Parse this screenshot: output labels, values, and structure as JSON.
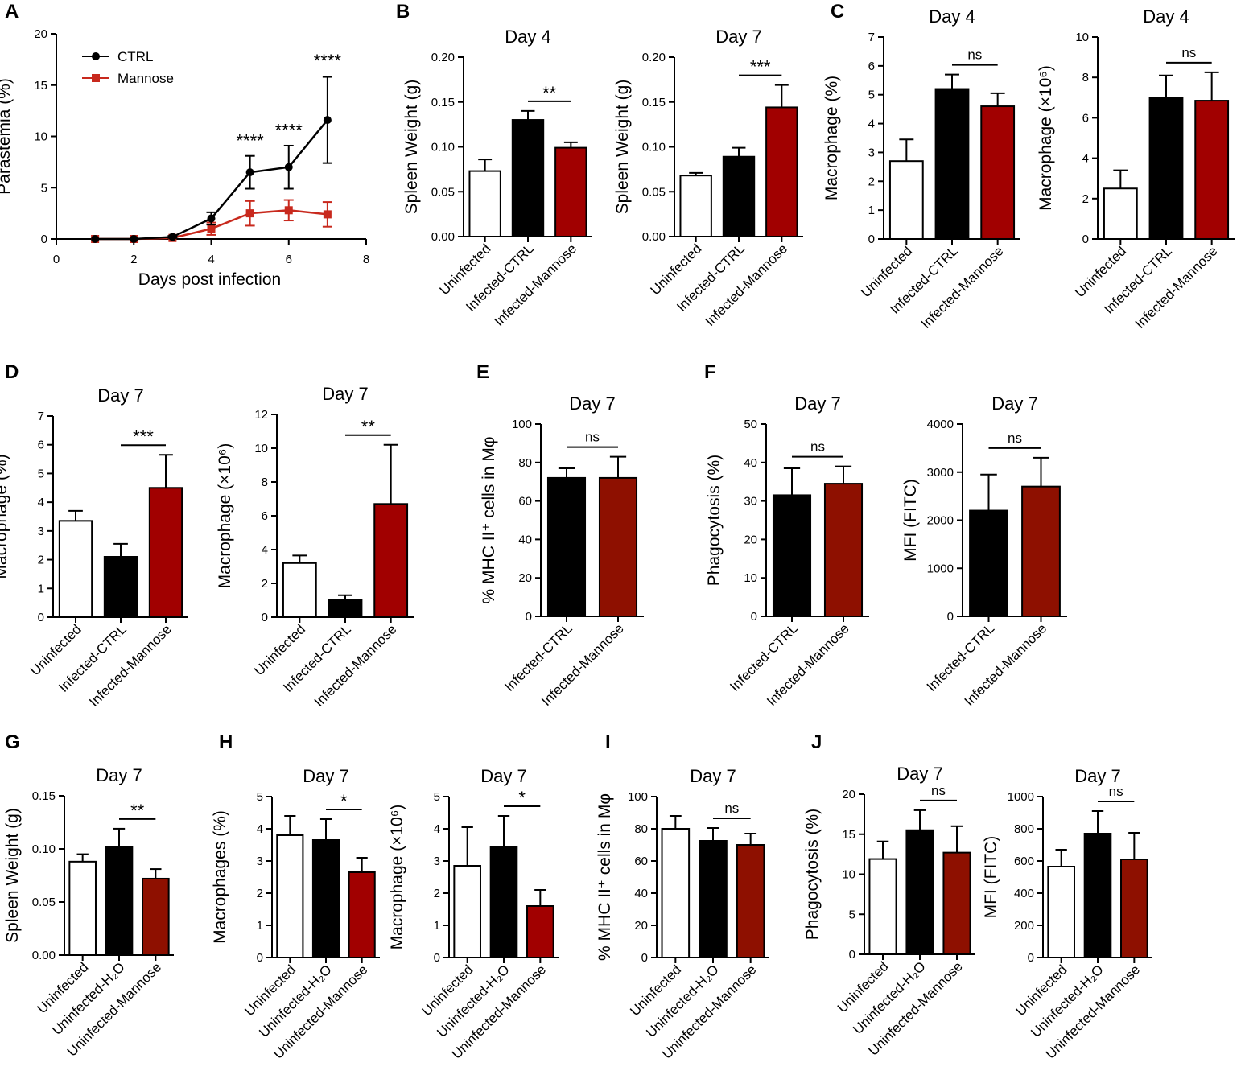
{
  "colors": {
    "uninfected": "#ffffff",
    "ctrl": "#000000",
    "mannose": "#a10000",
    "mannose_alt": "#8e1000",
    "line_mannose": "#c8291d"
  },
  "panels": [
    {
      "letter": "A"
    },
    {
      "letter": "B"
    },
    {
      "letter": "C"
    },
    {
      "letter": "D"
    },
    {
      "letter": "E"
    },
    {
      "letter": "F"
    },
    {
      "letter": "G"
    },
    {
      "letter": "H"
    },
    {
      "letter": "I"
    },
    {
      "letter": "J"
    }
  ],
  "chart_data": [
    {
      "id": "A",
      "type": "line",
      "title": "",
      "xlabel": "Days post infection",
      "ylabel": "Parastemia (%)",
      "xlim": [
        0,
        8
      ],
      "ylim": [
        0,
        20
      ],
      "xticks": [
        "0",
        "2",
        "4",
        "6",
        "8"
      ],
      "yticks": [
        "0",
        "5",
        "10",
        "15",
        "20"
      ],
      "legend": "top-left",
      "series": [
        {
          "name": "CTRL",
          "color": "#000000",
          "marker": "circle",
          "x": [
            1,
            2,
            3,
            4,
            5,
            6,
            7
          ],
          "y": [
            0,
            0,
            0.2,
            2.0,
            6.5,
            7.0,
            11.6
          ],
          "err": [
            0,
            0,
            0.1,
            0.6,
            1.6,
            2.1,
            4.2
          ]
        },
        {
          "name": "Mannose",
          "color": "#c8291d",
          "marker": "square",
          "x": [
            1,
            2,
            3,
            4,
            5,
            6,
            7
          ],
          "y": [
            0,
            0,
            0.1,
            1.0,
            2.5,
            2.8,
            2.4
          ],
          "err": [
            0,
            0,
            0.05,
            0.6,
            1.2,
            1.0,
            1.2
          ]
        }
      ],
      "annotations": [
        {
          "x": 5,
          "y": 9.0,
          "text": "****"
        },
        {
          "x": 6,
          "y": 10.0,
          "text": "****"
        },
        {
          "x": 7,
          "y": 16.8,
          "text": "****"
        }
      ]
    },
    {
      "id": "B1",
      "type": "bar",
      "title": "Day 4",
      "ylabel": "Spleen Weight (g)",
      "ylim": [
        0,
        0.2
      ],
      "yticks": [
        "0.00",
        "0.05",
        "0.10",
        "0.15",
        "0.20"
      ],
      "categories": [
        "Uninfected",
        "Infected-CTRL",
        "Infected-Mannose"
      ],
      "values": [
        0.073,
        0.13,
        0.099
      ],
      "errors": [
        0.013,
        0.01,
        0.006
      ],
      "fills": [
        "#ffffff",
        "#000000",
        "#a10000"
      ],
      "significance": [
        {
          "from": 1,
          "to": 2,
          "label": "**"
        }
      ]
    },
    {
      "id": "B2",
      "type": "bar",
      "title": "Day 7",
      "ylabel": "Spleen Weight (g)",
      "ylim": [
        0,
        0.2
      ],
      "yticks": [
        "0.00",
        "0.05",
        "0.10",
        "0.15",
        "0.20"
      ],
      "categories": [
        "Uninfected",
        "Infected-CTRL",
        "Infected-Mannose"
      ],
      "values": [
        0.068,
        0.089,
        0.144
      ],
      "errors": [
        0.003,
        0.01,
        0.025
      ],
      "fills": [
        "#ffffff",
        "#000000",
        "#a10000"
      ],
      "significance": [
        {
          "from": 1,
          "to": 2,
          "label": "***"
        }
      ]
    },
    {
      "id": "C1",
      "type": "bar",
      "title": "Day 4",
      "ylabel": "Macrophage (%)",
      "ylim": [
        0,
        7
      ],
      "yticks": [
        "0",
        "1",
        "2",
        "3",
        "4",
        "5",
        "6",
        "7"
      ],
      "categories": [
        "Uninfected",
        "Infected-CTRL",
        "Infected-Mannose"
      ],
      "values": [
        2.7,
        5.2,
        4.6
      ],
      "errors": [
        0.75,
        0.5,
        0.45
      ],
      "fills": [
        "#ffffff",
        "#000000",
        "#a10000"
      ],
      "significance": [
        {
          "from": 1,
          "to": 2,
          "label": "ns"
        }
      ]
    },
    {
      "id": "C2",
      "type": "bar",
      "title": "Day 4",
      "ylabel": "Macrophage (×10⁶)",
      "ylim": [
        0,
        10
      ],
      "yticks": [
        "0",
        "2",
        "4",
        "6",
        "8",
        "10"
      ],
      "categories": [
        "Uninfected",
        "Infected-CTRL",
        "Infected-Mannose"
      ],
      "values": [
        2.5,
        7.0,
        6.85
      ],
      "errors": [
        0.9,
        1.1,
        1.4
      ],
      "fills": [
        "#ffffff",
        "#000000",
        "#a10000"
      ],
      "significance": [
        {
          "from": 1,
          "to": 2,
          "label": "ns"
        }
      ]
    },
    {
      "id": "D1",
      "type": "bar",
      "title": "Day 7",
      "ylabel": "Macrophage (%)",
      "ylim": [
        0,
        7
      ],
      "yticks": [
        "0",
        "1",
        "2",
        "3",
        "4",
        "5",
        "6",
        "7"
      ],
      "categories": [
        "Uninfected",
        "Infected-CTRL",
        "Infected-Mannose"
      ],
      "values": [
        3.35,
        2.1,
        4.5
      ],
      "errors": [
        0.35,
        0.45,
        1.15
      ],
      "fills": [
        "#ffffff",
        "#000000",
        "#a10000"
      ],
      "significance": [
        {
          "from": 1,
          "to": 2,
          "label": "***"
        }
      ]
    },
    {
      "id": "D2",
      "type": "bar",
      "title": "Day 7",
      "ylabel": "Macrophage (×10⁶)",
      "ylim": [
        0,
        12
      ],
      "yticks": [
        "0",
        "2",
        "4",
        "6",
        "8",
        "10",
        "12"
      ],
      "categories": [
        "Uninfected",
        "Infected-CTRL",
        "Infected-Mannose"
      ],
      "values": [
        3.2,
        1.0,
        6.7
      ],
      "errors": [
        0.45,
        0.3,
        3.5
      ],
      "fills": [
        "#ffffff",
        "#000000",
        "#a10000"
      ],
      "significance": [
        {
          "from": 1,
          "to": 2,
          "label": "**"
        }
      ]
    },
    {
      "id": "E",
      "type": "bar",
      "title": "Day 7",
      "ylabel": "% MHC II⁺ cells in Mφ",
      "ylim": [
        0,
        100
      ],
      "yticks": [
        "0",
        "20",
        "40",
        "60",
        "80",
        "100"
      ],
      "categories": [
        "Infected-CTRL",
        "Infected-Mannose"
      ],
      "values": [
        72,
        72
      ],
      "errors": [
        5,
        11
      ],
      "fills": [
        "#000000",
        "#8e1000"
      ],
      "significance": [
        {
          "from": 0,
          "to": 1,
          "label": "ns"
        }
      ]
    },
    {
      "id": "F1",
      "type": "bar",
      "title": "Day 7",
      "ylabel": "Phagocytosis (%)",
      "ylim": [
        0,
        50
      ],
      "yticks": [
        "0",
        "10",
        "20",
        "30",
        "40",
        "50"
      ],
      "categories": [
        "Infected-CTRL",
        "Infected-Mannose"
      ],
      "values": [
        31.5,
        34.5
      ],
      "errors": [
        7,
        4.5
      ],
      "fills": [
        "#000000",
        "#8e1000"
      ],
      "significance": [
        {
          "from": 0,
          "to": 1,
          "label": "ns"
        }
      ]
    },
    {
      "id": "F2",
      "type": "bar",
      "title": "Day 7",
      "ylabel": "MFI (FITC)",
      "ylim": [
        0,
        4000
      ],
      "yticks": [
        "0",
        "1000",
        "2000",
        "3000",
        "4000"
      ],
      "categories": [
        "Infected-CTRL",
        "Infected-Mannose"
      ],
      "values": [
        2200,
        2700
      ],
      "errors": [
        750,
        600
      ],
      "fills": [
        "#000000",
        "#8e1000"
      ],
      "significance": [
        {
          "from": 0,
          "to": 1,
          "label": "ns"
        }
      ]
    },
    {
      "id": "G",
      "type": "bar",
      "title": "Day 7",
      "ylabel": "Spleen Weight (g)",
      "ylim": [
        0,
        0.15
      ],
      "yticks": [
        "0.00",
        "0.05",
        "0.10",
        "0.15"
      ],
      "categories": [
        "Uninfected",
        "Uninfected-H₂O",
        "Uninfected-Mannose"
      ],
      "values": [
        0.088,
        0.102,
        0.072
      ],
      "errors": [
        0.007,
        0.017,
        0.009
      ],
      "fills": [
        "#ffffff",
        "#000000",
        "#8e1000"
      ],
      "significance": [
        {
          "from": 1,
          "to": 2,
          "label": "**"
        }
      ]
    },
    {
      "id": "H1",
      "type": "bar",
      "title": "Day 7",
      "ylabel": "Macrophages (%)",
      "ylim": [
        0,
        5
      ],
      "yticks": [
        "0",
        "1",
        "2",
        "3",
        "4",
        "5"
      ],
      "categories": [
        "Uninfected",
        "Uninfected-H₂O",
        "Uninfected-Mannose"
      ],
      "values": [
        3.8,
        3.65,
        2.65
      ],
      "errors": [
        0.6,
        0.65,
        0.45
      ],
      "fills": [
        "#ffffff",
        "#000000",
        "#a10000"
      ],
      "significance": [
        {
          "from": 1,
          "to": 2,
          "label": "*"
        }
      ]
    },
    {
      "id": "H2",
      "type": "bar",
      "title": "Day 7",
      "ylabel": "Macrophage (×10⁶)",
      "ylim": [
        0,
        5
      ],
      "yticks": [
        "0",
        "1",
        "2",
        "3",
        "4",
        "5"
      ],
      "categories": [
        "Uninfected",
        "Uninfected-H₂O",
        "Uninfected-Mannose"
      ],
      "values": [
        2.85,
        3.45,
        1.6
      ],
      "errors": [
        1.2,
        0.95,
        0.5
      ],
      "fills": [
        "#ffffff",
        "#000000",
        "#a10000"
      ],
      "significance": [
        {
          "from": 1,
          "to": 2,
          "label": "*"
        }
      ]
    },
    {
      "id": "I",
      "type": "bar",
      "title": "Day 7",
      "ylabel": "% MHC II⁺ cells in Mφ",
      "ylim": [
        0,
        100
      ],
      "yticks": [
        "0",
        "20",
        "40",
        "60",
        "80",
        "100"
      ],
      "categories": [
        "Uninfected",
        "Uninfected-H₂O",
        "Uninfected-Mannose"
      ],
      "values": [
        80,
        72.5,
        70
      ],
      "errors": [
        8,
        8,
        7
      ],
      "fills": [
        "#ffffff",
        "#000000",
        "#8e1000"
      ],
      "significance": [
        {
          "from": 1,
          "to": 2,
          "label": "ns"
        }
      ]
    },
    {
      "id": "J1",
      "type": "bar",
      "title": "Day 7",
      "ylabel": "Phagocytosis (%)",
      "ylim": [
        0,
        20
      ],
      "yticks": [
        "0",
        "5",
        "10",
        "15",
        "20"
      ],
      "categories": [
        "Uninfected",
        "Uninfected-H₂O",
        "Uninfected-Mannose"
      ],
      "values": [
        11.9,
        15.5,
        12.7
      ],
      "errors": [
        2.2,
        2.5,
        3.3
      ],
      "fills": [
        "#ffffff",
        "#000000",
        "#8e1000"
      ],
      "significance": [
        {
          "from": 1,
          "to": 2,
          "label": "ns"
        }
      ]
    },
    {
      "id": "J2",
      "type": "bar",
      "title": "Day 7",
      "ylabel": "MFI (FITC)",
      "ylim": [
        0,
        1000
      ],
      "yticks": [
        "0",
        "200",
        "400",
        "600",
        "800",
        "1000"
      ],
      "categories": [
        "Uninfected",
        "Uninfected-H₂O",
        "Uninfected-Mannose"
      ],
      "values": [
        565,
        770,
        610
      ],
      "errors": [
        105,
        140,
        165
      ],
      "fills": [
        "#ffffff",
        "#000000",
        "#8e1000"
      ],
      "significance": [
        {
          "from": 1,
          "to": 2,
          "label": "ns"
        }
      ]
    }
  ]
}
